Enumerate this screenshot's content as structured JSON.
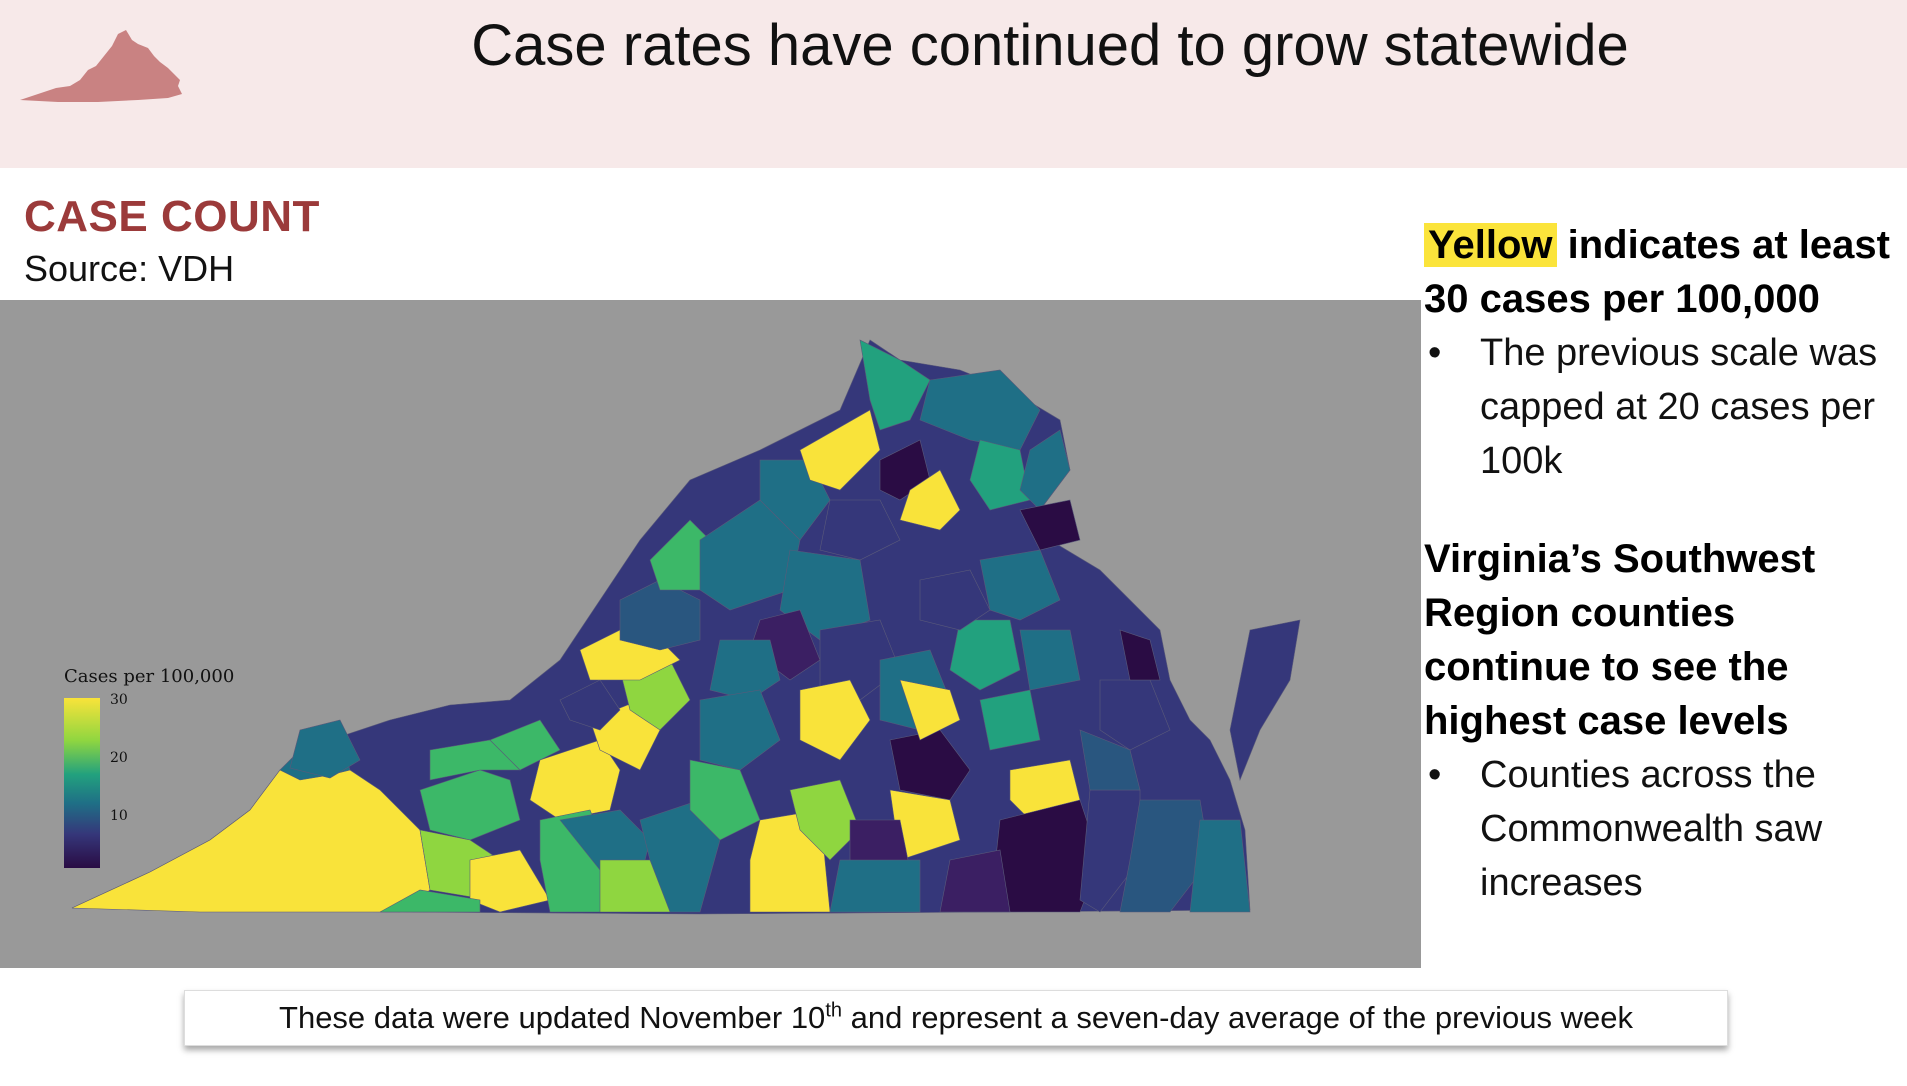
{
  "header": {
    "title": "Case rates have continued to grow statewide",
    "logo_color": "#c98282"
  },
  "section": {
    "title": "CASE COUNT",
    "source": "Source: VDH"
  },
  "legend": {
    "title": "Cases per 100,000",
    "ticks": [
      "30",
      "20",
      "10"
    ]
  },
  "colors": {
    "yellow": "#f9e33a",
    "light_green": "#8fd640",
    "green": "#3cb868",
    "teal_green": "#22a17e",
    "teal": "#1f6f86",
    "blue": "#29567f",
    "indigo": "#35377a",
    "violet": "#3b1f63",
    "dark": "#2a0c44",
    "map_bg": "#999999"
  },
  "notes": {
    "highlight_word": "Yellow",
    "line1_rest": " indicates at least",
    "line2": "30 cases per 100,000",
    "bullet1": "The previous scale was capped at 20 cases per 100k",
    "heading2": "Virginia’s Southwest Region counties continue to see the highest case levels",
    "bullet2": "Counties across the Commonwealth saw increases"
  },
  "footer": {
    "text_before": "These data were updated November 10",
    "superscript": "th",
    "text_after": " and represent a seven-day average of the previous week"
  }
}
